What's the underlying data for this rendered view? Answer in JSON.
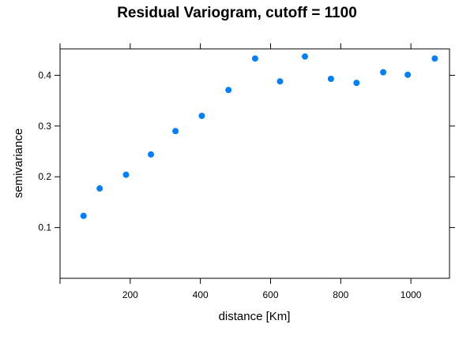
{
  "chart_data": {
    "type": "scatter",
    "title": "Residual Variogram, cutoff = 1100",
    "xlabel": "distance [Km]",
    "ylabel": "semivariance",
    "xlim": [
      0,
      1110
    ],
    "ylim": [
      0.0,
      0.452
    ],
    "x_ticks": [
      200,
      400,
      600,
      800,
      1000
    ],
    "y_ticks": [
      0.1,
      0.2,
      0.3,
      0.4
    ],
    "x_tick_labels": [
      "200",
      "400",
      "600",
      "800",
      "1000"
    ],
    "y_tick_labels": [
      "0.1",
      "0.2",
      "0.3",
      "0.4"
    ],
    "grid": false,
    "point_color": "#0080ff",
    "x": [
      67,
      113,
      188,
      259,
      329,
      404,
      480,
      556,
      627,
      698,
      772,
      845,
      921,
      991,
      1068
    ],
    "y": [
      0.123,
      0.177,
      0.204,
      0.244,
      0.29,
      0.32,
      0.371,
      0.433,
      0.388,
      0.437,
      0.393,
      0.385,
      0.406,
      0.401,
      0.433
    ]
  }
}
